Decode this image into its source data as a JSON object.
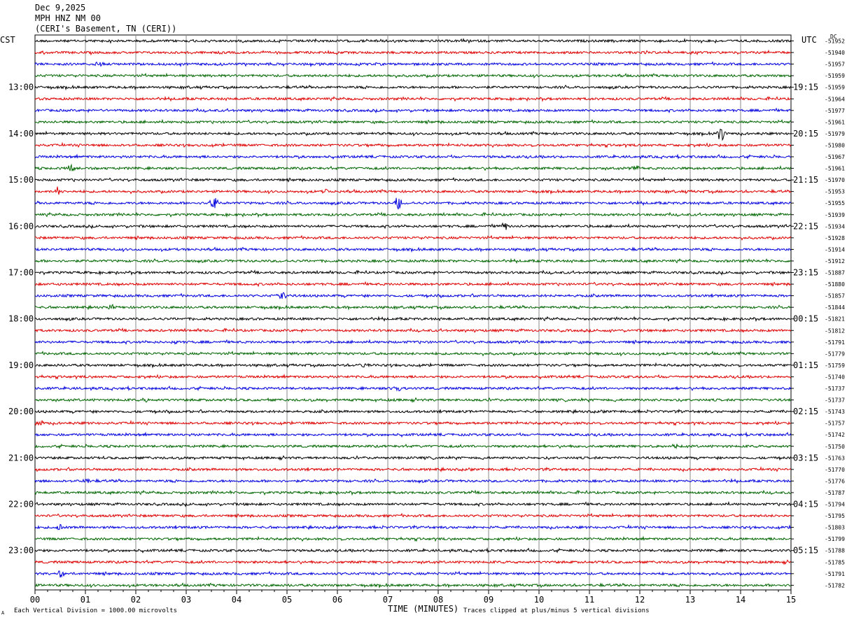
{
  "header": {
    "date": "Dec 9,2025",
    "station": "MPH HNZ NM 00",
    "location": "(CERI's Basement, TN (CERI))"
  },
  "left_axis_title": "CST",
  "right_axis_title": "UTC",
  "dc_label": "DC",
  "footer": {
    "scale_note": "Each Vertical Division = 1000.00 microvolts",
    "clip_note": "Traces clipped at plus/minus 5 vertical divisions",
    "corner_mark": "A"
  },
  "colors": {
    "trace_cycle": [
      "#000000",
      "#dd0000",
      "#0000dd",
      "#006600"
    ],
    "grid": "#888888"
  },
  "chart_data": {
    "type": "line",
    "xlabel": "TIME (MINUTES)",
    "xlim": [
      0,
      15
    ],
    "x_ticks": [
      "00",
      "01",
      "02",
      "03",
      "04",
      "05",
      "06",
      "07",
      "08",
      "09",
      "10",
      "11",
      "12",
      "13",
      "14",
      "15"
    ],
    "trace_count": 48,
    "left_hour_labels": [
      {
        "row": 4,
        "label": "13:00"
      },
      {
        "row": 8,
        "label": "14:00"
      },
      {
        "row": 12,
        "label": "15:00"
      },
      {
        "row": 16,
        "label": "16:00"
      },
      {
        "row": 20,
        "label": "17:00"
      },
      {
        "row": 24,
        "label": "18:00"
      },
      {
        "row": 28,
        "label": "19:00"
      },
      {
        "row": 32,
        "label": "20:00"
      },
      {
        "row": 36,
        "label": "21:00"
      },
      {
        "row": 40,
        "label": "22:00"
      },
      {
        "row": 44,
        "label": "23:00"
      }
    ],
    "right_hour_labels": [
      {
        "row": 4,
        "label": "19:15"
      },
      {
        "row": 8,
        "label": "20:15"
      },
      {
        "row": 12,
        "label": "21:15"
      },
      {
        "row": 16,
        "label": "22:15"
      },
      {
        "row": 20,
        "label": "23:15"
      },
      {
        "row": 24,
        "label": "00:15"
      },
      {
        "row": 28,
        "label": "01:15"
      },
      {
        "row": 32,
        "label": "02:15"
      },
      {
        "row": 36,
        "label": "03:15"
      },
      {
        "row": 40,
        "label": "04:15"
      },
      {
        "row": 44,
        "label": "05:15"
      }
    ],
    "dc_offsets": [
      "-51952",
      "-51940",
      "-51957",
      "-51959",
      "-51959",
      "-51964",
      "-51977",
      "-51961",
      "-51979",
      "-51980",
      "-51967",
      "-51961",
      "-51970",
      "-51953",
      "-51955",
      "-51939",
      "-51934",
      "-51928",
      "-51914",
      "-51912",
      "-51887",
      "-51880",
      "-51857",
      "-51844",
      "-51821",
      "-51812",
      "-51791",
      "-51779",
      "-51759",
      "-51740",
      "-51737",
      "-51737",
      "-51743",
      "-51757",
      "-51742",
      "-51750",
      "-51763",
      "-51770",
      "-51776",
      "-51787",
      "-51794",
      "-51795",
      "-51803",
      "-51799",
      "-51788",
      "-51785",
      "-51791",
      "-51782"
    ],
    "events": [
      {
        "row": 0,
        "x": 6.9,
        "amp": 4
      },
      {
        "row": 2,
        "x": 1.3,
        "amp": 5
      },
      {
        "row": 8,
        "x": 13.6,
        "amp": 14
      },
      {
        "row": 11,
        "x": 0.7,
        "amp": 5
      },
      {
        "row": 11,
        "x": 11.9,
        "amp": 6
      },
      {
        "row": 13,
        "x": 0.45,
        "amp": 7
      },
      {
        "row": 13,
        "x": 5.8,
        "amp": 4
      },
      {
        "row": 14,
        "x": 3.55,
        "amp": 10
      },
      {
        "row": 14,
        "x": 7.2,
        "amp": 12
      },
      {
        "row": 16,
        "x": 9.3,
        "amp": 6
      },
      {
        "row": 22,
        "x": 4.9,
        "amp": 6
      },
      {
        "row": 23,
        "x": 1.5,
        "amp": 4
      },
      {
        "row": 26,
        "x": 2.8,
        "amp": 4
      },
      {
        "row": 28,
        "x": 6.5,
        "amp": 4
      },
      {
        "row": 30,
        "x": 7.2,
        "amp": 5
      },
      {
        "row": 31,
        "x": 2.2,
        "amp": 4
      },
      {
        "row": 33,
        "x": 0.1,
        "amp": 5
      },
      {
        "row": 35,
        "x": 12.7,
        "amp": 4
      },
      {
        "row": 38,
        "x": 1.0,
        "amp": 5
      },
      {
        "row": 42,
        "x": 0.5,
        "amp": 4
      },
      {
        "row": 46,
        "x": 0.5,
        "amp": 8
      }
    ]
  }
}
